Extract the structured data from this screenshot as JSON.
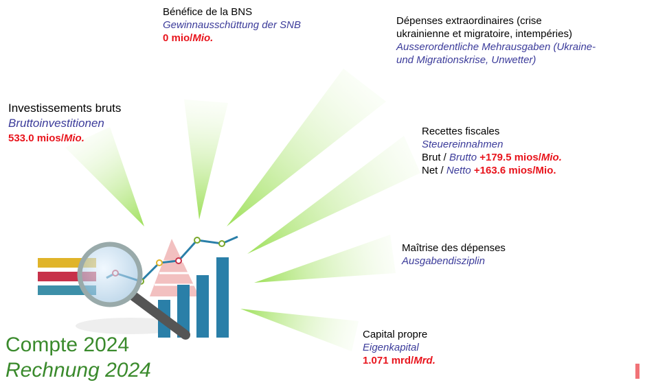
{
  "title": {
    "fr": "Compte 2024",
    "de": "Rechnung 2024"
  },
  "callouts": {
    "investments": {
      "fr": "Investissements bruts",
      "de": "Bruttoinvestitionen",
      "value": "533.0 mios/",
      "unit": "Mio."
    },
    "snb": {
      "fr": "Bénéfice de la BNS",
      "de": "Gewinnausschüttung der SNB",
      "value": "0 mio/",
      "unit": "Mio."
    },
    "extraordinary": {
      "fr": [
        "Dépenses extraordinaires (crise",
        "ukrainienne et migratoire, intempéries)"
      ],
      "de": [
        "Ausserordentliche Mehrausgaben (Ukraine-",
        "und Migrationskrise, Unwetter)"
      ]
    },
    "tax": {
      "fr": "Recettes fiscales",
      "de": "Steuereinnahmen",
      "gross": {
        "fr": "Brut /",
        "de": "Brutto",
        "value": "+179.5 mios/",
        "unit": "Mio."
      },
      "net": {
        "fr": "Net /",
        "de": "Netto",
        "value": "+163.6 mios/Mio."
      }
    },
    "discipline": {
      "fr": "Maîtrise des dépenses",
      "de": "Ausgabendisziplin"
    },
    "equity": {
      "fr": "Capital propre",
      "de": "Eigenkapital",
      "value": "1.071 mrd/",
      "unit": "Mrd."
    }
  }
}
